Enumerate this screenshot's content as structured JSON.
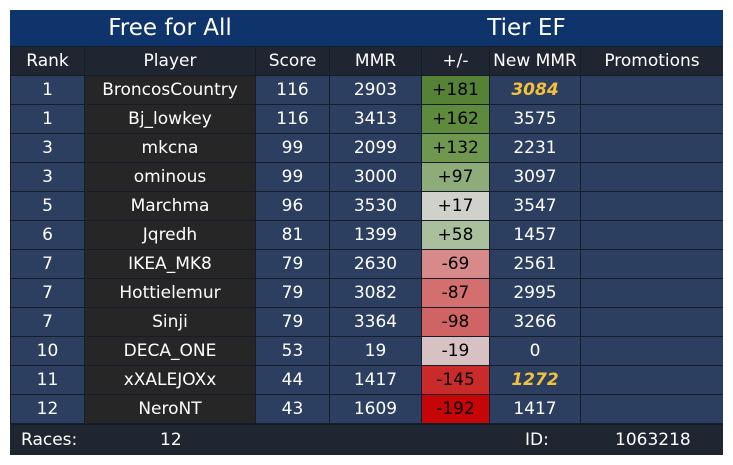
{
  "header": {
    "mode": "Free for All",
    "tier": "Tier EF"
  },
  "columns": [
    "Rank",
    "Player",
    "Score",
    "MMR",
    "+/-",
    "New MMR",
    "Promotions"
  ],
  "rows": [
    {
      "rank": "1",
      "player": "BroncosCountry",
      "score": "116",
      "mmr": "2903",
      "delta": "+181",
      "new_mmr": "3084",
      "promotion": "",
      "delta_color": "#568237",
      "highlight": true
    },
    {
      "rank": "1",
      "player": "Bj_lowkey",
      "score": "116",
      "mmr": "3413",
      "delta": "+162",
      "new_mmr": "3575",
      "promotion": "",
      "delta_color": "#5d8a3c",
      "highlight": false
    },
    {
      "rank": "3",
      "player": "mkcna",
      "score": "99",
      "mmr": "2099",
      "delta": "+132",
      "new_mmr": "2231",
      "promotion": "",
      "delta_color": "#6f974f",
      "highlight": false
    },
    {
      "rank": "3",
      "player": "ominous",
      "score": "99",
      "mmr": "3000",
      "delta": "+97",
      "new_mmr": "3097",
      "promotion": "",
      "delta_color": "#8eac79",
      "highlight": false
    },
    {
      "rank": "5",
      "player": "Marchma",
      "score": "96",
      "mmr": "3530",
      "delta": "+17",
      "new_mmr": "3547",
      "promotion": "",
      "delta_color": "#cfd1ca",
      "highlight": false
    },
    {
      "rank": "6",
      "player": "Jqredh",
      "score": "81",
      "mmr": "1399",
      "delta": "+58",
      "new_mmr": "1457",
      "promotion": "",
      "delta_color": "#aabf9b",
      "highlight": false
    },
    {
      "rank": "7",
      "player": "IKEA_MK8",
      "score": "79",
      "mmr": "2630",
      "delta": "-69",
      "new_mmr": "2561",
      "promotion": "",
      "delta_color": "#d88a8a",
      "highlight": false
    },
    {
      "rank": "7",
      "player": "Hottielemur",
      "score": "79",
      "mmr": "3082",
      "delta": "-87",
      "new_mmr": "2995",
      "promotion": "",
      "delta_color": "#d46f6f",
      "highlight": false
    },
    {
      "rank": "7",
      "player": "Sinji",
      "score": "79",
      "mmr": "3364",
      "delta": "-98",
      "new_mmr": "3266",
      "promotion": "",
      "delta_color": "#d06363",
      "highlight": false
    },
    {
      "rank": "10",
      "player": "DECA_ONE",
      "score": "53",
      "mmr": "19",
      "delta": "-19",
      "new_mmr": "0",
      "promotion": "",
      "delta_color": "#d7c1c3",
      "highlight": false
    },
    {
      "rank": "11",
      "player": "xXALEJOXx",
      "score": "44",
      "mmr": "1417",
      "delta": "-145",
      "new_mmr": "1272",
      "promotion": "",
      "delta_color": "#c92a2a",
      "highlight": true
    },
    {
      "rank": "12",
      "player": "NeroNT",
      "score": "43",
      "mmr": "1609",
      "delta": "-192",
      "new_mmr": "1417",
      "promotion": "",
      "delta_color": "#c60606",
      "highlight": false
    }
  ],
  "footer": {
    "races_label": "Races:",
    "races_value": "12",
    "id_label": "ID:",
    "id_value": "1063218"
  },
  "colors": {
    "title_bar": "#0f346b",
    "cell_blue": "#2c3f61",
    "cell_dark": "#262626",
    "header_row": "#1f2631",
    "highlight_text": "#f3c13a"
  }
}
